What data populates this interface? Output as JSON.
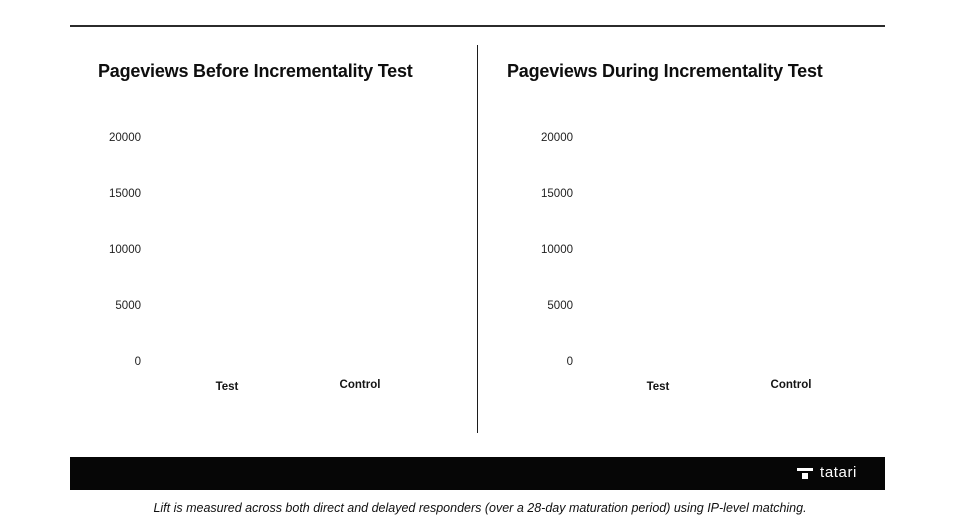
{
  "page": {
    "background": "#ffffff",
    "rule_color": "#2b2b2b",
    "footer_color": "#060606",
    "text_color": "#111111"
  },
  "charts": [
    {
      "title": "Pageviews Before Incrementality Test",
      "yticks": [
        "20000",
        "15000",
        "10000",
        "5000",
        "0"
      ],
      "categories": [
        "Test",
        "Control"
      ]
    },
    {
      "title": "Pageviews During Incrementality Test",
      "yticks": [
        "20000",
        "15000",
        "10000",
        "5000",
        "0"
      ],
      "categories": [
        "Test",
        "Control"
      ]
    }
  ],
  "footer": {
    "brand": "tatari",
    "logo_icon": "tatari-t-icon"
  },
  "caption": "Lift is measured across both direct and delayed responders (over a 28-day maturation period) using IP-level matching.",
  "chart_data": [
    {
      "type": "bar",
      "title": "Pageviews Before Incrementality Test",
      "categories": [
        "Test",
        "Control"
      ],
      "values": [],
      "xlabel": "",
      "ylabel": "",
      "ylim": [
        0,
        20000
      ],
      "yticks": [
        0,
        5000,
        10000,
        15000,
        20000
      ],
      "grid": false,
      "legend": false
    },
    {
      "type": "bar",
      "title": "Pageviews During Incrementality Test",
      "categories": [
        "Test",
        "Control"
      ],
      "values": [],
      "xlabel": "",
      "ylabel": "",
      "ylim": [
        0,
        20000
      ],
      "yticks": [
        0,
        5000,
        10000,
        15000,
        20000
      ],
      "grid": false,
      "legend": false
    }
  ]
}
